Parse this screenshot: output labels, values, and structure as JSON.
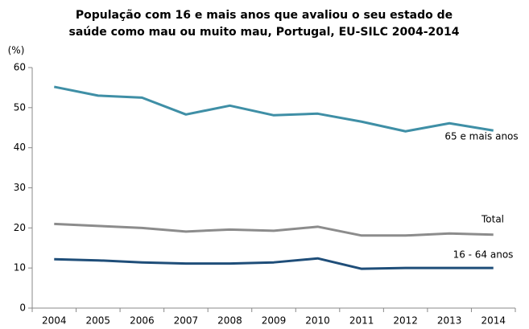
{
  "chart_data": {
    "type": "line",
    "title": [
      "População com 16 e mais anos que avaliou o seu estado de",
      "saúde como mau ou muito mau, Portugal, EU-SILC 2004-2014"
    ],
    "y_label": "(%)",
    "categories": [
      "2004",
      "2005",
      "2006",
      "2007",
      "2008",
      "2009",
      "2010",
      "2011",
      "2012",
      "2013",
      "2014"
    ],
    "series": [
      {
        "name": "65 e mais anos",
        "color": "#3f8fa6",
        "values": [
          55.2,
          53.0,
          52.5,
          48.3,
          50.5,
          48.1,
          48.5,
          46.5,
          44.1,
          46.1,
          44.3
        ]
      },
      {
        "name": "Total",
        "color": "#8c8c8c",
        "values": [
          21.0,
          20.5,
          20.0,
          19.1,
          19.6,
          19.3,
          20.3,
          18.1,
          18.1,
          18.6,
          18.3
        ]
      },
      {
        "name": "16 - 64 anos",
        "color": "#1f4e79",
        "values": [
          12.2,
          11.9,
          11.4,
          11.1,
          11.1,
          11.4,
          12.4,
          9.8,
          10.0,
          10.0,
          10.0
        ]
      }
    ],
    "ylim": [
      0,
      60
    ],
    "yticks": [
      0,
      10,
      20,
      30,
      40,
      50,
      60
    ],
    "grid": false
  }
}
